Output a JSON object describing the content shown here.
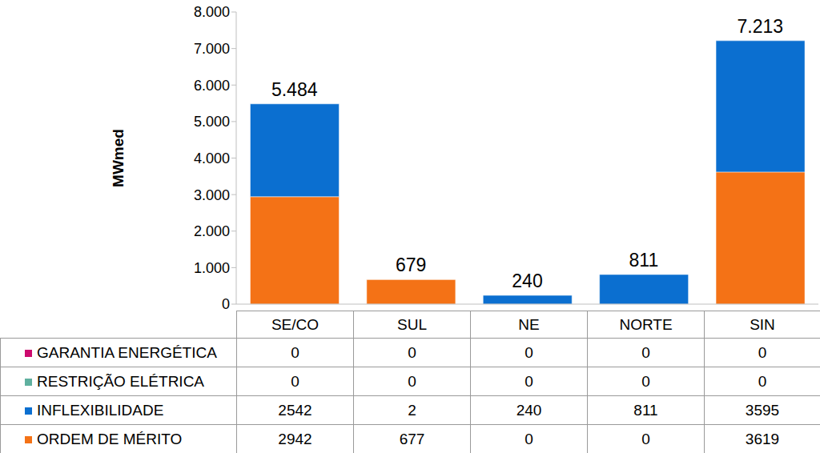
{
  "chart_data": {
    "type": "bar",
    "stacked": true,
    "grid": false,
    "y_label": "MWmed",
    "categories": [
      "SE/CO",
      "SUL",
      "NE",
      "NORTE",
      "SIN"
    ],
    "series": [
      {
        "name": "GARANTIA ENERGÉTICA",
        "color": "#cc0a6e",
        "values": [
          0,
          0,
          0,
          0,
          0
        ]
      },
      {
        "name": "RESTRIÇÃO ELÉTRICA",
        "color": "#5fb09f",
        "values": [
          0,
          0,
          0,
          0,
          0
        ]
      },
      {
        "name": "INFLEXIBILIDADE",
        "color": "#0b6fd0",
        "values": [
          2542,
          2,
          240,
          811,
          3595
        ]
      },
      {
        "name": "ORDEM DE MÉRITO",
        "color": "#f47216",
        "values": [
          2942,
          677,
          0,
          0,
          3619
        ]
      }
    ],
    "totals": [
      5484,
      679,
      240,
      811,
      7213
    ],
    "total_labels": [
      "5.484",
      "679",
      "240",
      "811",
      "7.213"
    ],
    "ylim": [
      0,
      8000
    ],
    "yticks": [
      {
        "value": 0,
        "label": "0"
      },
      {
        "value": 1000,
        "label": "1.000"
      },
      {
        "value": 2000,
        "label": "2.000"
      },
      {
        "value": 3000,
        "label": "3.000"
      },
      {
        "value": 4000,
        "label": "4.000"
      },
      {
        "value": 5000,
        "label": "5.000"
      },
      {
        "value": 6000,
        "label": "6.000"
      },
      {
        "value": 7000,
        "label": "7.000"
      },
      {
        "value": 8000,
        "label": "8.000"
      }
    ]
  }
}
